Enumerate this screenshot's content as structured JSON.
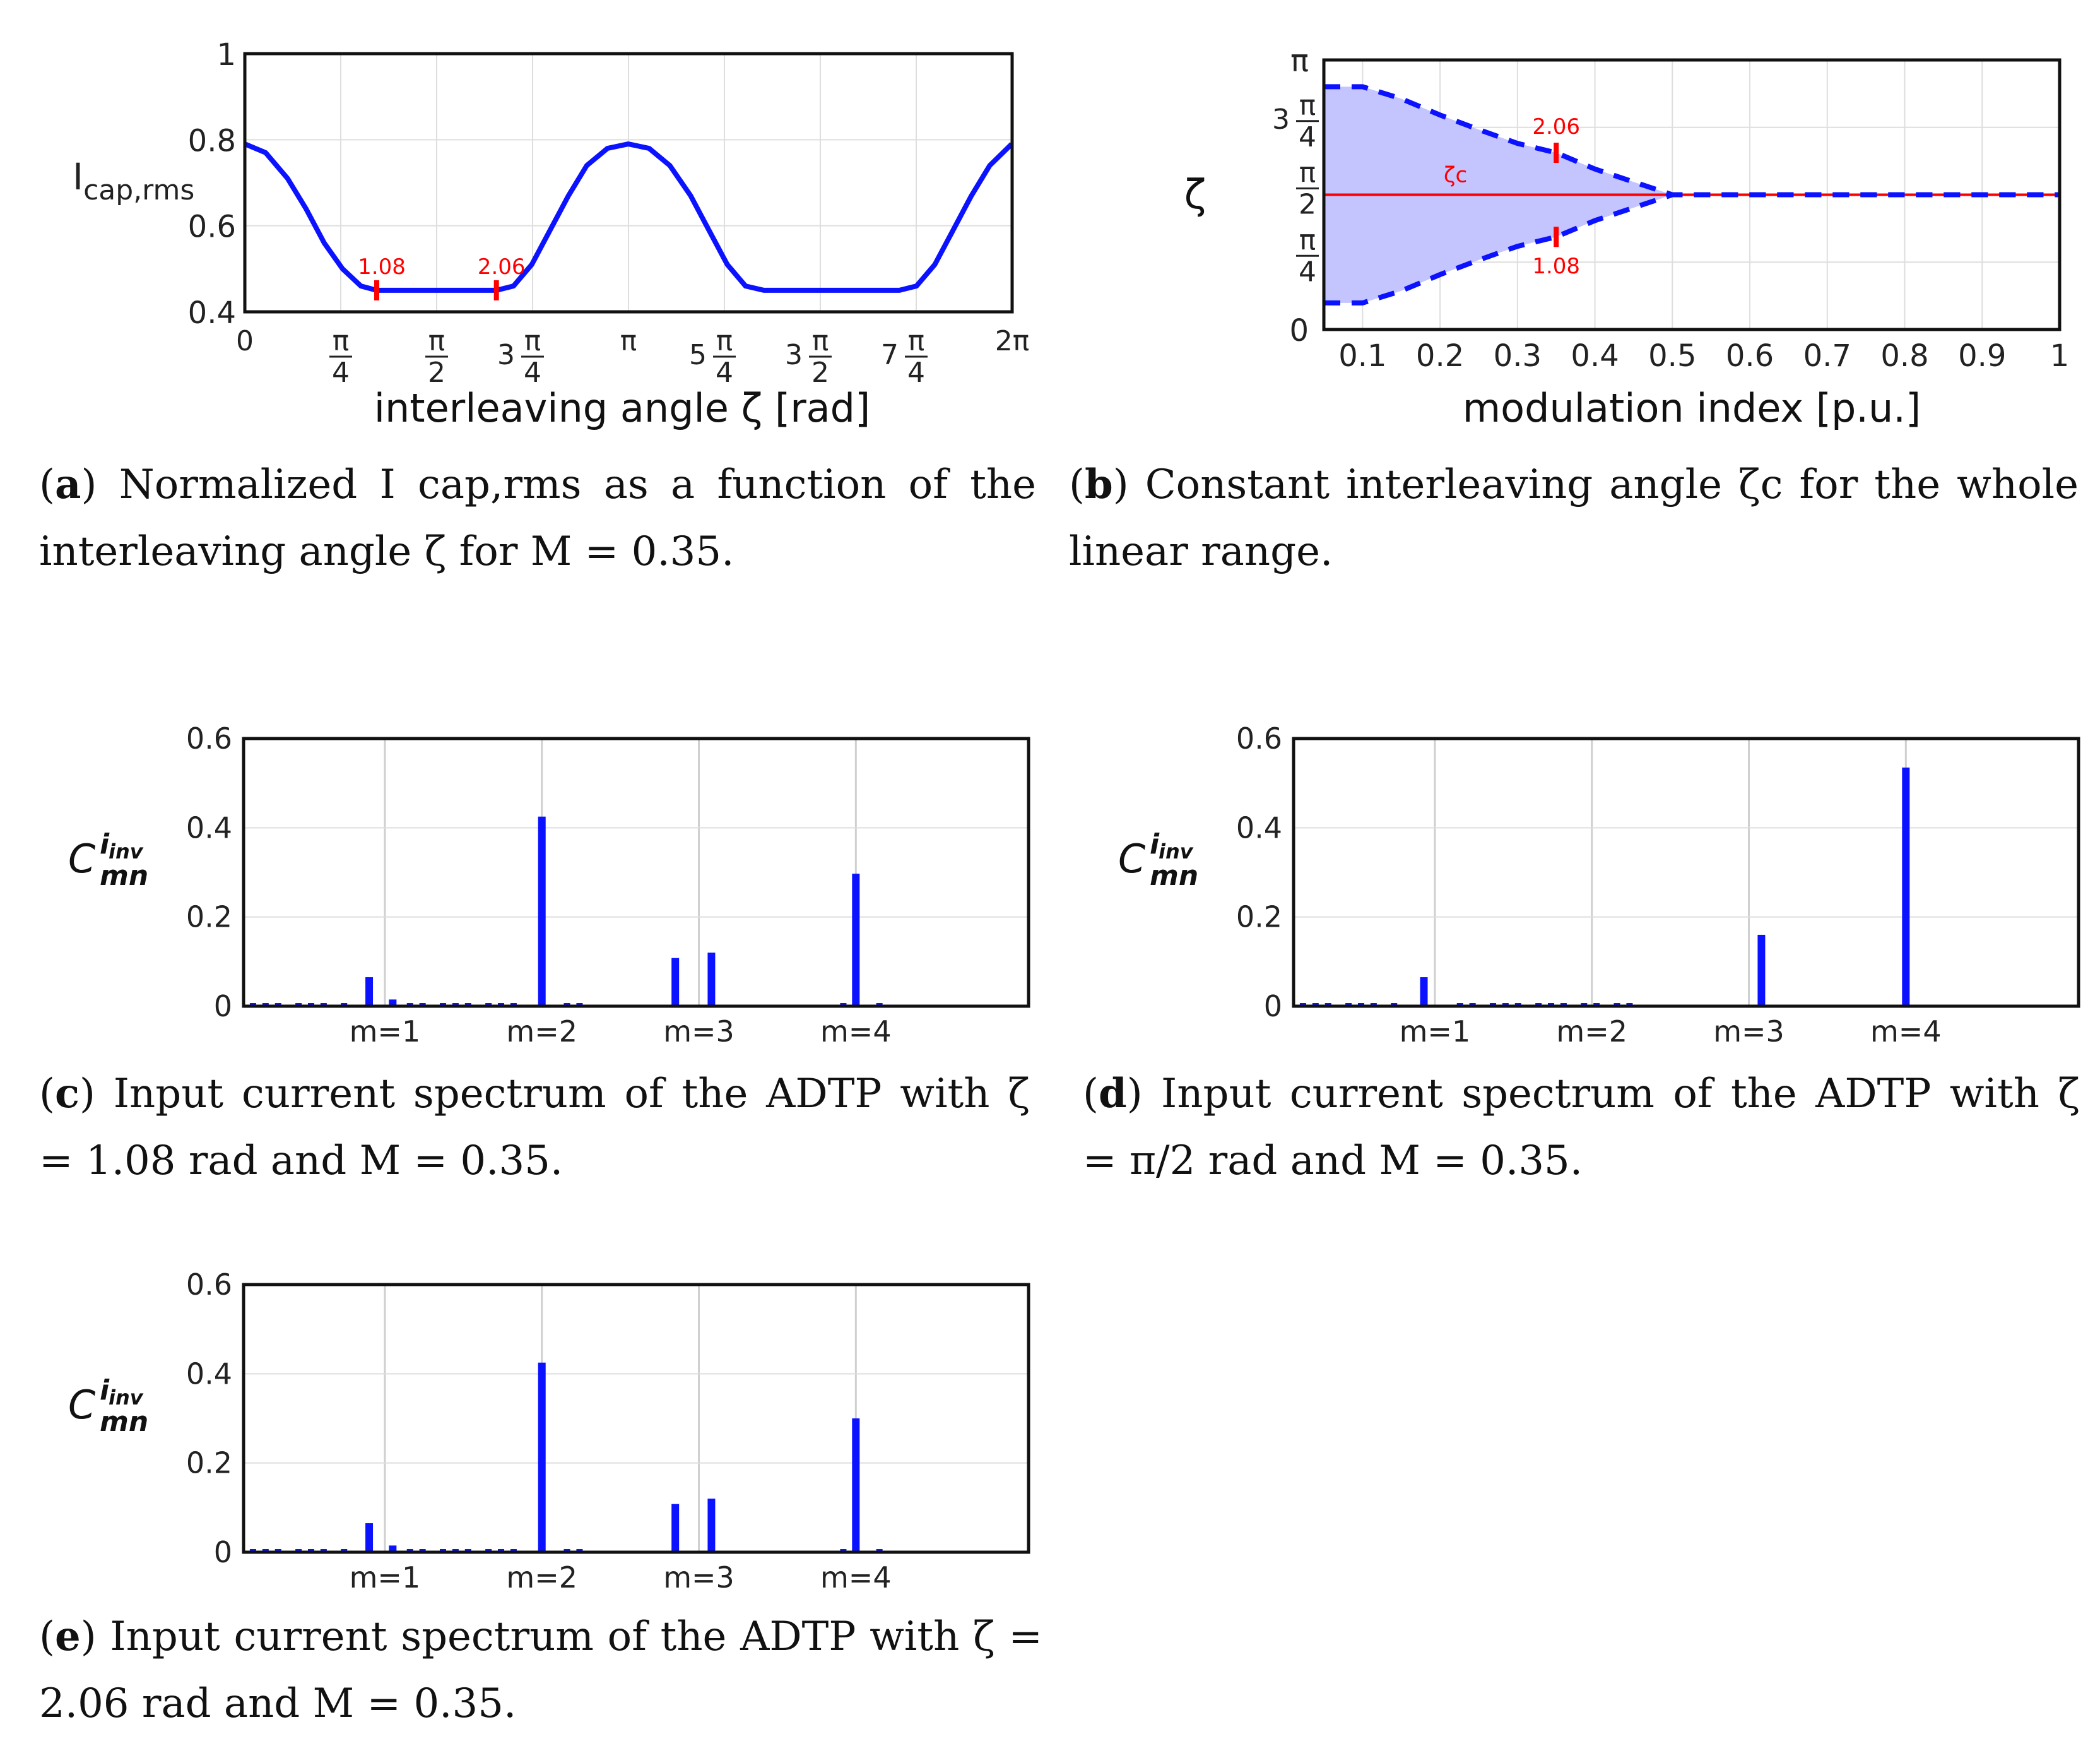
{
  "chart_data": [
    {
      "id": "a",
      "type": "line",
      "ylabel_main": "I",
      "ylabel_sub": "cap,rms",
      "xlabel": "interleaving angle ζ [rad]",
      "xlim": [
        0,
        6.2832
      ],
      "ylim": [
        0.4,
        1.0
      ],
      "yticks": [
        0.4,
        0.6,
        0.8,
        1.0
      ],
      "ytick_labels": [
        "0.4",
        "0.6",
        "0.8",
        "1"
      ],
      "xticks": [
        {
          "value": 0,
          "label": "0"
        },
        {
          "value": 0.7854,
          "label": "π/4"
        },
        {
          "value": 1.5708,
          "label": "π/2"
        },
        {
          "value": 2.3562,
          "label": "3 π/4"
        },
        {
          "value": 3.1416,
          "label": "π"
        },
        {
          "value": 3.927,
          "label": "5 π/4"
        },
        {
          "value": 4.7124,
          "label": "3 π/2"
        },
        {
          "value": 5.4978,
          "label": "7 π/4"
        },
        {
          "value": 6.2832,
          "label": "2π"
        }
      ],
      "series": [
        {
          "name": "Icap,rms",
          "color": "#0b12ff",
          "x": [
            0.0,
            0.17,
            0.35,
            0.5,
            0.65,
            0.8,
            0.95,
            1.08,
            2.06,
            2.2,
            2.35,
            2.5,
            2.65,
            2.8,
            2.97,
            3.14,
            3.31,
            3.48,
            3.65,
            3.8,
            3.95,
            4.1,
            4.25,
            4.38,
            5.36,
            5.5,
            5.65,
            5.8,
            5.95,
            6.1,
            6.28
          ],
          "y": [
            0.79,
            0.77,
            0.71,
            0.64,
            0.56,
            0.5,
            0.46,
            0.45,
            0.45,
            0.46,
            0.51,
            0.59,
            0.67,
            0.74,
            0.78,
            0.79,
            0.78,
            0.74,
            0.67,
            0.59,
            0.51,
            0.46,
            0.45,
            0.45,
            0.45,
            0.46,
            0.51,
            0.59,
            0.67,
            0.74,
            0.79
          ]
        }
      ],
      "markers": [
        {
          "x": 1.08,
          "y": 0.45,
          "label": "1.08",
          "color": "#ff0000"
        },
        {
          "x": 2.06,
          "y": 0.45,
          "label": "2.06",
          "color": "#ff0000"
        }
      ]
    },
    {
      "id": "b",
      "type": "area",
      "ylabel": "ζ",
      "xlabel": "modulation index [p.u.]",
      "xlim": [
        0.05,
        1.0
      ],
      "ylim": [
        0,
        3.1416
      ],
      "xticks": [
        0.1,
        0.2,
        0.3,
        0.4,
        0.5,
        0.6,
        0.7,
        0.8,
        0.9,
        1.0
      ],
      "xtick_labels": [
        "0.1",
        "0.2",
        "0.3",
        "0.4",
        "0.5",
        "0.6",
        "0.7",
        "0.8",
        "0.9",
        "1"
      ],
      "yticks": [
        {
          "value": 0,
          "label": "0"
        },
        {
          "value": 0.7854,
          "label": "π/4"
        },
        {
          "value": 1.5708,
          "label": "π/2"
        },
        {
          "value": 2.3562,
          "label": "3 π/4"
        },
        {
          "value": 3.1416,
          "label": "π"
        }
      ],
      "upper_bound": {
        "x": [
          0.05,
          0.1,
          0.15,
          0.2,
          0.25,
          0.3,
          0.35,
          0.4,
          0.45,
          0.5,
          1.0
        ],
        "y": [
          2.83,
          2.83,
          2.69,
          2.5,
          2.33,
          2.17,
          2.06,
          1.87,
          1.72,
          1.5708,
          1.5708
        ]
      },
      "lower_bound": {
        "x": [
          0.05,
          0.1,
          0.15,
          0.2,
          0.25,
          0.3,
          0.35,
          0.4,
          0.45,
          0.5,
          1.0
        ],
        "y": [
          0.31,
          0.31,
          0.45,
          0.64,
          0.81,
          0.97,
          1.08,
          1.27,
          1.42,
          1.5708,
          1.5708
        ]
      },
      "constant_line": {
        "y": 1.5708,
        "label": "ζc",
        "color": "#ff0000"
      },
      "fill_color": "#c4c4ff",
      "bound_color": "#0b12ff",
      "markers": [
        {
          "x": 0.35,
          "y": 2.06,
          "label": "2.06",
          "color": "#ff0000"
        },
        {
          "x": 0.35,
          "y": 1.08,
          "label": "1.08",
          "color": "#ff0000"
        }
      ]
    },
    {
      "id": "c",
      "type": "bar",
      "ylabel_main": "C",
      "ylabel_sup": "i",
      "ylabel_supsub": "inv",
      "ylabel_sub": "mn",
      "ylim": [
        0,
        0.6
      ],
      "yticks": [
        0,
        0.2,
        0.4,
        0.6
      ],
      "ytick_labels": [
        "0",
        "0.2",
        "0.4",
        "0.6"
      ],
      "categories": [
        "m=1",
        "m=2",
        "m=3",
        "m=4"
      ],
      "bars": [
        {
          "x": 0.9,
          "v": 0.065
        },
        {
          "x": 1.05,
          "v": 0.015
        },
        {
          "x": 2.0,
          "v": 0.425
        },
        {
          "x": 2.85,
          "v": 0.108
        },
        {
          "x": 3.08,
          "v": 0.12
        },
        {
          "x": 4.0,
          "v": 0.297
        }
      ],
      "small_bars": [
        0.16,
        0.24,
        0.32,
        0.45,
        0.53,
        0.61,
        0.74,
        1.16,
        1.24,
        1.37,
        1.45,
        1.53,
        1.66,
        1.74,
        1.82,
        2.16,
        2.24,
        3.92,
        4.15
      ]
    },
    {
      "id": "d",
      "type": "bar",
      "ylabel_main": "C",
      "ylabel_sup": "i",
      "ylabel_supsub": "inv",
      "ylabel_sub": "mn",
      "ylim": [
        0,
        0.6
      ],
      "yticks": [
        0,
        0.2,
        0.4,
        0.6
      ],
      "ytick_labels": [
        "0",
        "0.2",
        "0.4",
        "0.6"
      ],
      "categories": [
        "m=1",
        "m=2",
        "m=3",
        "m=4"
      ],
      "bars": [
        {
          "x": 0.93,
          "v": 0.065
        },
        {
          "x": 3.08,
          "v": 0.16
        },
        {
          "x": 4.0,
          "v": 0.535
        }
      ],
      "small_bars": [
        0.16,
        0.24,
        0.32,
        0.45,
        0.53,
        0.61,
        0.74,
        1.16,
        1.24,
        1.37,
        1.45,
        1.53,
        1.66,
        1.74,
        1.82,
        1.95,
        2.03,
        2.16,
        2.24
      ]
    },
    {
      "id": "e",
      "type": "bar",
      "ylabel_main": "C",
      "ylabel_sup": "i",
      "ylabel_supsub": "inv",
      "ylabel_sub": "mn",
      "ylim": [
        0,
        0.6
      ],
      "yticks": [
        0,
        0.2,
        0.4,
        0.6
      ],
      "ytick_labels": [
        "0",
        "0.2",
        "0.4",
        "0.6"
      ],
      "categories": [
        "m=1",
        "m=2",
        "m=3",
        "m=4"
      ],
      "bars": [
        {
          "x": 0.9,
          "v": 0.065
        },
        {
          "x": 1.05,
          "v": 0.015
        },
        {
          "x": 2.0,
          "v": 0.425
        },
        {
          "x": 2.85,
          "v": 0.108
        },
        {
          "x": 3.08,
          "v": 0.12
        },
        {
          "x": 4.0,
          "v": 0.3
        }
      ],
      "small_bars": [
        0.16,
        0.24,
        0.32,
        0.45,
        0.53,
        0.61,
        0.74,
        1.16,
        1.24,
        1.37,
        1.45,
        1.53,
        1.66,
        1.74,
        1.82,
        2.16,
        2.24,
        3.92,
        4.15
      ]
    }
  ],
  "captions": {
    "a": {
      "label": "a",
      "text": ") Normalized I cap,rms as a function of the interleaving angle ζ for M = 0.35."
    },
    "b": {
      "label": "b",
      "text": ") Constant interleaving angle ζc for the whole linear range."
    },
    "c": {
      "label": "c",
      "text": ") Input current spectrum of the ADTP with ζ = 1.08 rad and M = 0.35."
    },
    "d": {
      "label": "d",
      "text": ") Input current spectrum of the ADTP with ζ = π/2 rad and M = 0.35."
    },
    "e": {
      "label": "e",
      "text": ") Input current spectrum of the ADTP with ζ = 2.06 rad and M = 0.35."
    }
  }
}
